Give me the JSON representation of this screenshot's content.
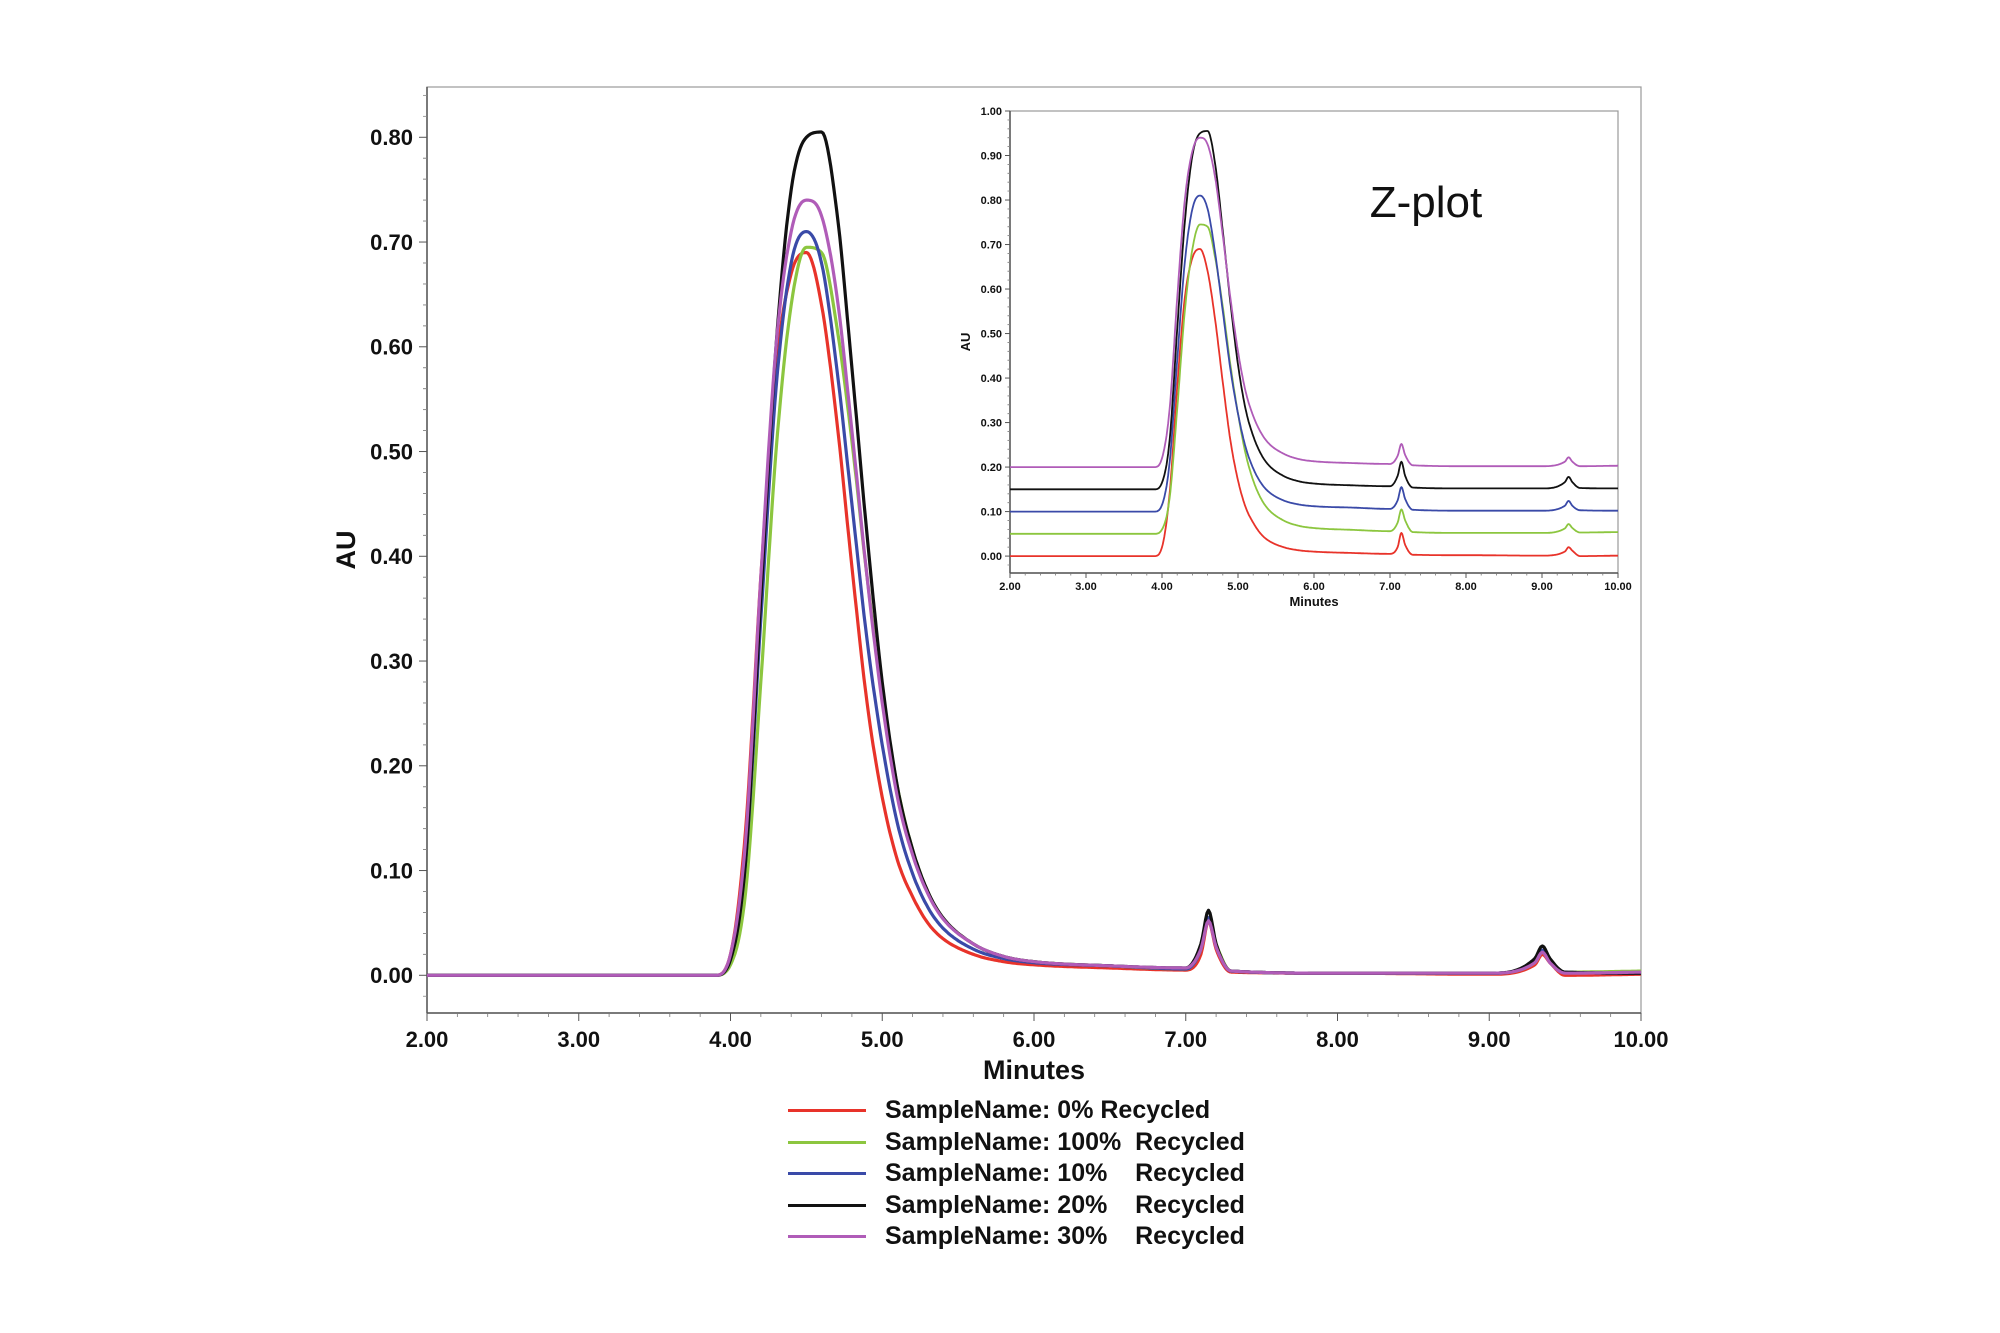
{
  "chart_data": [
    {
      "type": "line",
      "xlabel": "Minutes",
      "ylabel": "AU",
      "xlim": [
        2.0,
        10.0
      ],
      "ylim": [
        -0.036,
        0.848
      ],
      "xticks": [
        "2.00",
        "3.00",
        "4.00",
        "5.00",
        "6.00",
        "7.00",
        "8.00",
        "9.00",
        "10.00"
      ],
      "yticks": [
        "0.00",
        "0.10",
        "0.20",
        "0.30",
        "0.40",
        "0.50",
        "0.60",
        "0.70",
        "0.80"
      ],
      "grid": false,
      "legend_position": "bottom",
      "x": [
        2.0,
        3.0,
        3.9,
        4.0,
        4.1,
        4.2,
        4.3,
        4.4,
        4.5,
        4.6,
        4.7,
        4.8,
        4.9,
        5.0,
        5.1,
        5.2,
        5.3,
        5.4,
        5.6,
        5.8,
        6.0,
        6.5,
        7.0,
        7.1,
        7.15,
        7.2,
        7.3,
        8.0,
        9.0,
        9.3,
        9.35,
        9.4,
        9.5,
        10.0
      ],
      "series": [
        {
          "name": "SampleName: 0% Recycled",
          "color": "#e8332a",
          "values": [
            0,
            0,
            0,
            0.02,
            0.14,
            0.38,
            0.58,
            0.67,
            0.69,
            0.64,
            0.53,
            0.39,
            0.26,
            0.17,
            0.11,
            0.075,
            0.05,
            0.035,
            0.02,
            0.013,
            0.01,
            0.007,
            0.005,
            0.02,
            0.052,
            0.025,
            0.003,
            0.002,
            0.001,
            0.01,
            0.02,
            0.012,
            0.0,
            0.001
          ]
        },
        {
          "name": "SampleName: 100%  Recycled",
          "color": "#8cc63f",
          "values": [
            0,
            0,
            0,
            0.01,
            0.08,
            0.28,
            0.5,
            0.64,
            0.695,
            0.69,
            0.62,
            0.51,
            0.38,
            0.27,
            0.18,
            0.12,
            0.08,
            0.055,
            0.03,
            0.018,
            0.013,
            0.009,
            0.006,
            0.025,
            0.055,
            0.03,
            0.004,
            0.002,
            0.002,
            0.012,
            0.022,
            0.013,
            0.003,
            0.004
          ]
        },
        {
          "name": "SampleName: 10%    Recycled",
          "color": "#3a4aa8",
          "values": [
            0,
            0,
            0,
            0.015,
            0.11,
            0.34,
            0.56,
            0.68,
            0.71,
            0.68,
            0.58,
            0.45,
            0.32,
            0.22,
            0.145,
            0.097,
            0.065,
            0.045,
            0.025,
            0.016,
            0.012,
            0.009,
            0.006,
            0.025,
            0.055,
            0.028,
            0.004,
            0.002,
            0.002,
            0.013,
            0.024,
            0.013,
            0.003,
            0.002
          ]
        },
        {
          "name": "SampleName: 20%    Recycled",
          "color": "#111111",
          "values": [
            0,
            0,
            0,
            0.015,
            0.11,
            0.36,
            0.6,
            0.75,
            0.8,
            0.805,
            0.73,
            0.58,
            0.42,
            0.28,
            0.18,
            0.12,
            0.08,
            0.055,
            0.03,
            0.018,
            0.013,
            0.009,
            0.007,
            0.03,
            0.062,
            0.03,
            0.004,
            0.002,
            0.002,
            0.016,
            0.028,
            0.016,
            0.003,
            0.002
          ]
        },
        {
          "name": "SampleName: 30%    Recycled",
          "color": "#b05cb8",
          "values": [
            0,
            0,
            0,
            0.02,
            0.13,
            0.38,
            0.6,
            0.71,
            0.74,
            0.725,
            0.65,
            0.52,
            0.38,
            0.26,
            0.17,
            0.115,
            0.078,
            0.054,
            0.03,
            0.018,
            0.013,
            0.009,
            0.007,
            0.025,
            0.052,
            0.027,
            0.004,
            0.002,
            0.002,
            0.012,
            0.022,
            0.012,
            0.002,
            0.003
          ]
        }
      ]
    },
    {
      "type": "line",
      "title": "Z-plot",
      "xlabel": "Minutes",
      "ylabel": "AU",
      "xlim": [
        2.0,
        10.0
      ],
      "ylim": [
        -0.038,
        1.0
      ],
      "xticks": [
        "2.00",
        "3.00",
        "4.00",
        "5.00",
        "6.00",
        "7.00",
        "8.00",
        "9.00",
        "10.00"
      ],
      "yticks": [
        "0.00",
        "0.10",
        "0.20",
        "0.30",
        "0.40",
        "0.50",
        "0.60",
        "0.70",
        "0.80",
        "0.90",
        "1.00"
      ],
      "grid": false,
      "series_offsets": [
        0,
        0.05,
        0.1,
        0.15,
        0.2
      ],
      "note_series_source": "same series as main chart, vertically offset"
    }
  ]
}
